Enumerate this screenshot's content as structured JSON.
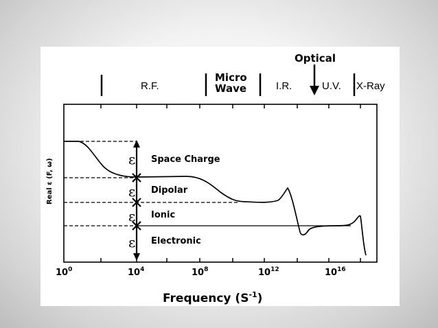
{
  "figure": {
    "bands": {
      "optical": "Optical",
      "rf": "R.F.",
      "micro_line1": "Micro",
      "micro_line2": "Wave",
      "ir": "I.R.",
      "uv": "U.V.",
      "xray": "X-Ray"
    },
    "y_axis_label": "Real ε (F, ω)",
    "epsilon_symbol": "ε",
    "mechanisms": {
      "space_charge": "Space Charge",
      "dipolar": "Dipolar",
      "ionic": "Ionic",
      "electronic": "Electronic"
    },
    "x_ticks": {
      "t0": {
        "base": "10",
        "exp": "0"
      },
      "t4": {
        "base": "10",
        "exp": "4"
      },
      "t8": {
        "base": "10",
        "exp": "8"
      },
      "t12": {
        "base": "10",
        "exp": "12"
      },
      "t16": {
        "base": "10",
        "exp": "16"
      }
    },
    "x_axis_title": {
      "text": "Frequency (S",
      "exp": "-1",
      "close": ")"
    },
    "colors": {
      "ink": "#000000",
      "paper": "#ffffff"
    }
  }
}
